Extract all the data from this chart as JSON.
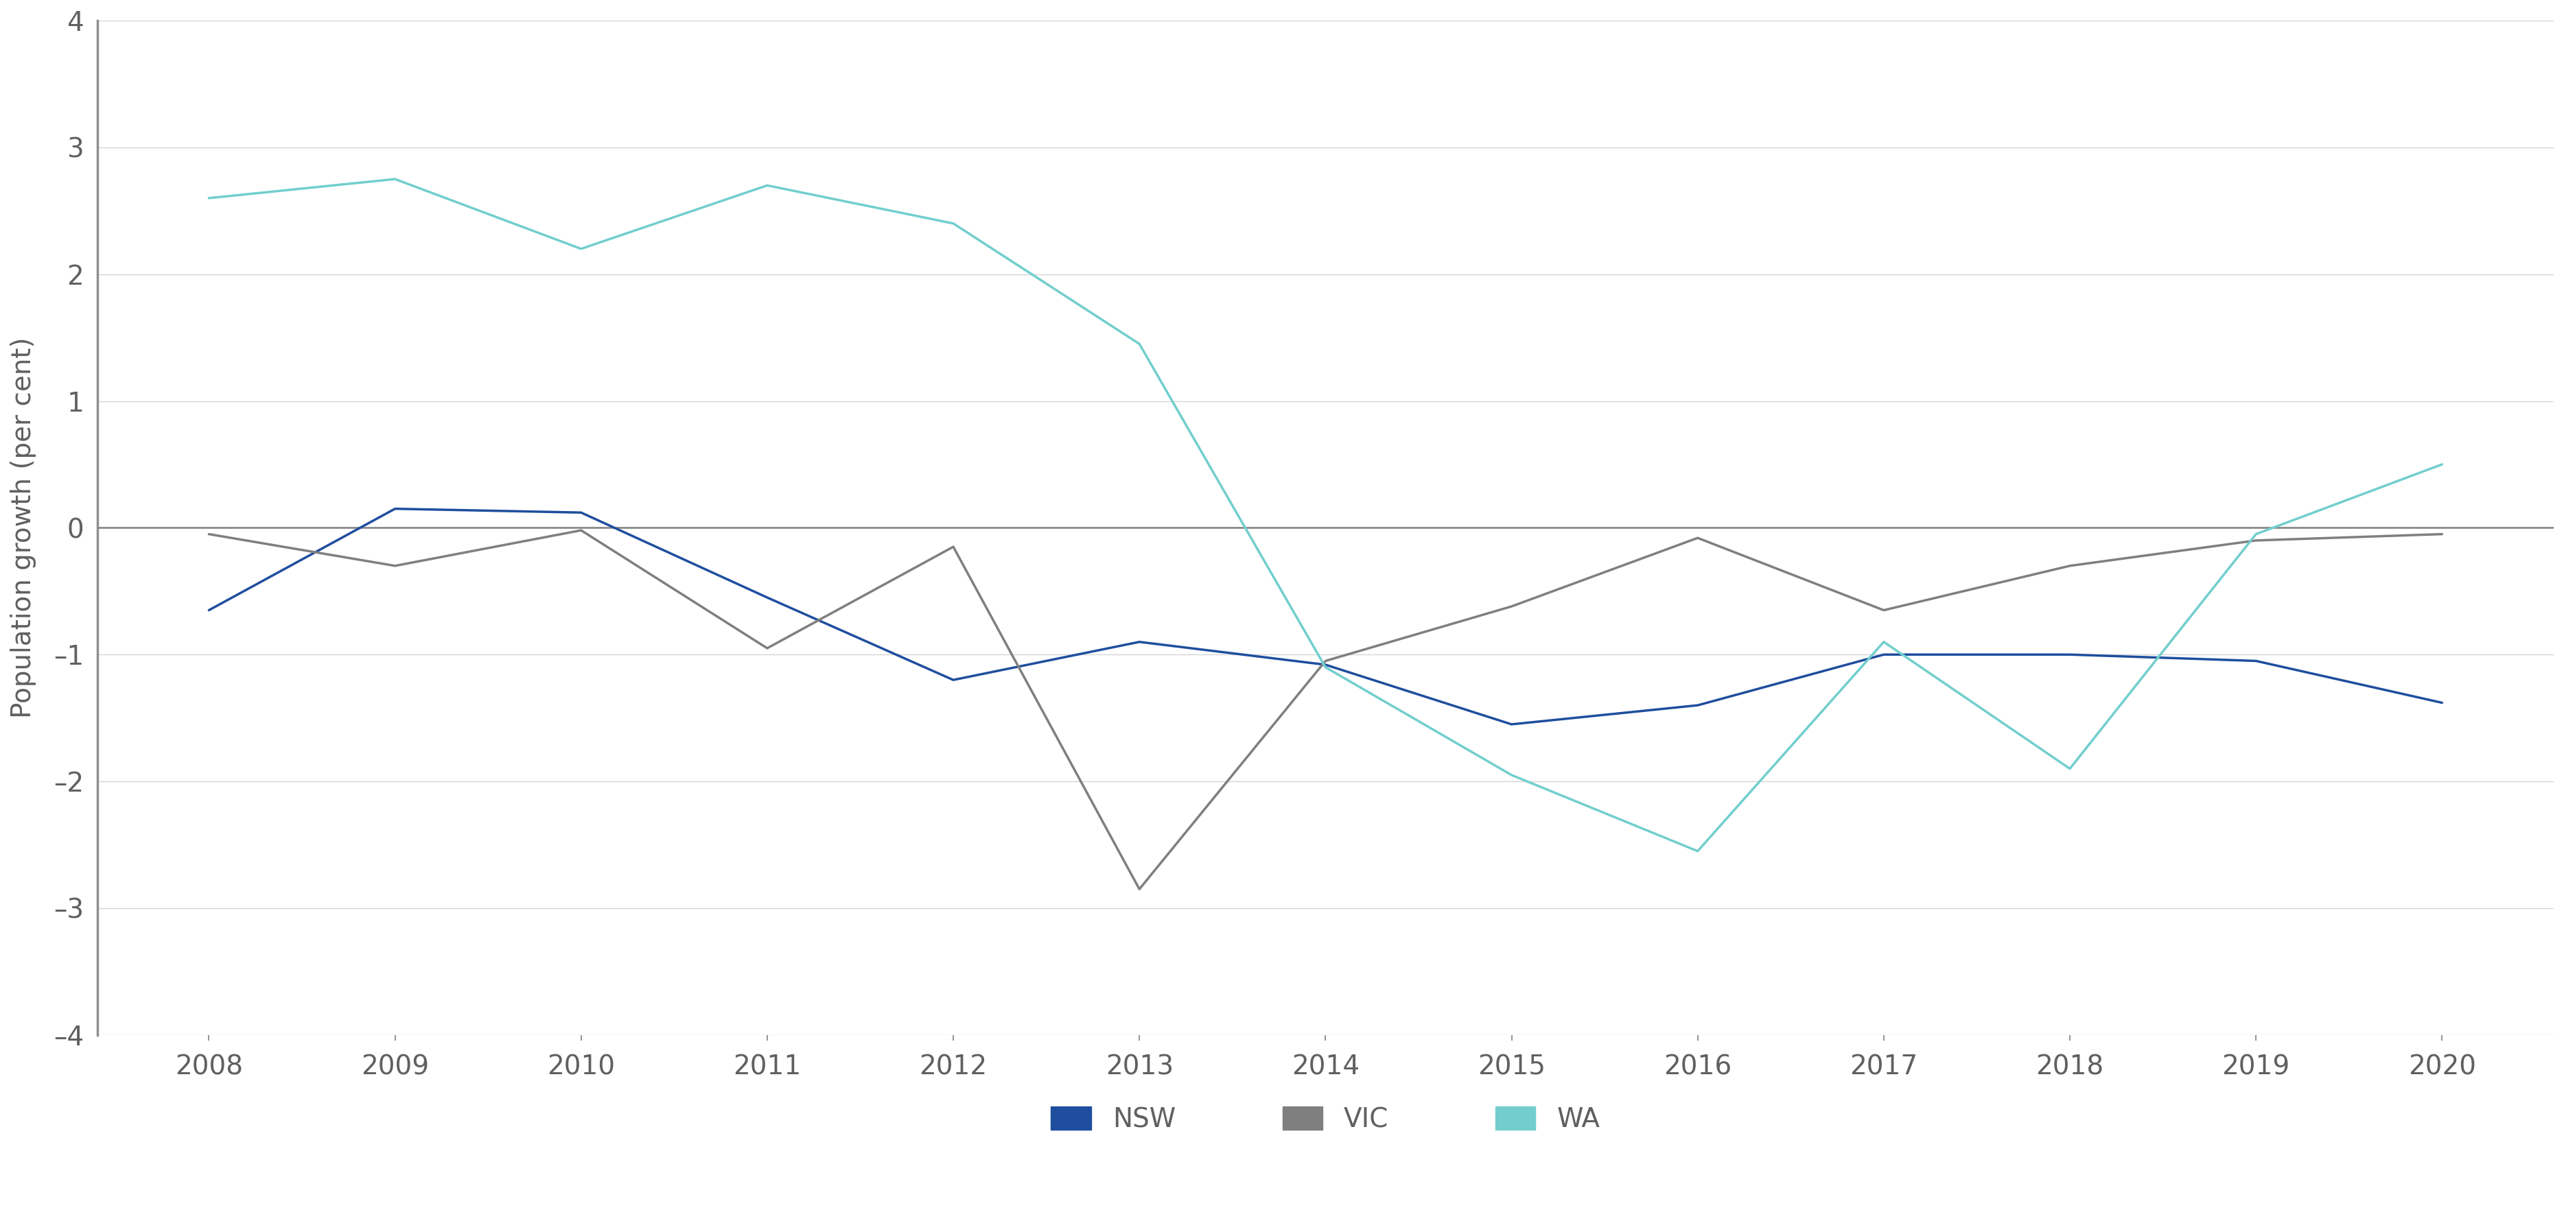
{
  "years": [
    2008,
    2009,
    2010,
    2011,
    2012,
    2013,
    2014,
    2015,
    2016,
    2017,
    2018,
    2019,
    2020
  ],
  "NSW": [
    -0.65,
    0.15,
    0.12,
    -0.55,
    -1.2,
    -0.9,
    -1.08,
    -1.55,
    -1.4,
    -1.0,
    -1.0,
    -1.05,
    -1.38
  ],
  "VIC": [
    -0.05,
    -0.3,
    -0.02,
    -0.95,
    -0.15,
    -2.85,
    -1.05,
    -0.62,
    -0.08,
    -0.65,
    -0.3,
    -0.1,
    -0.05
  ],
  "WA": [
    2.6,
    2.75,
    2.2,
    2.7,
    2.4,
    1.45,
    -1.1,
    -1.95,
    -2.55,
    -0.9,
    -1.9,
    -0.05,
    0.5
  ],
  "NSW_color": "#1f4e9e",
  "VIC_color": "#7f7f7f",
  "WA_color": "#72cece",
  "ylim": [
    -4,
    4
  ],
  "yticks": [
    -4,
    -3,
    -2,
    -1,
    0,
    1,
    2,
    3,
    4
  ],
  "ylabel": "Population growth (per cent)",
  "background_color": "#ffffff",
  "grid_color": "#d5d5d5",
  "zero_line_color": "#808080",
  "tick_label_color": "#606060",
  "left_spine_color": "#909090",
  "legend_items": [
    "NSW",
    "VIC",
    "WA"
  ],
  "line_width": 2.5,
  "tick_fontsize": 28,
  "label_fontsize": 28
}
